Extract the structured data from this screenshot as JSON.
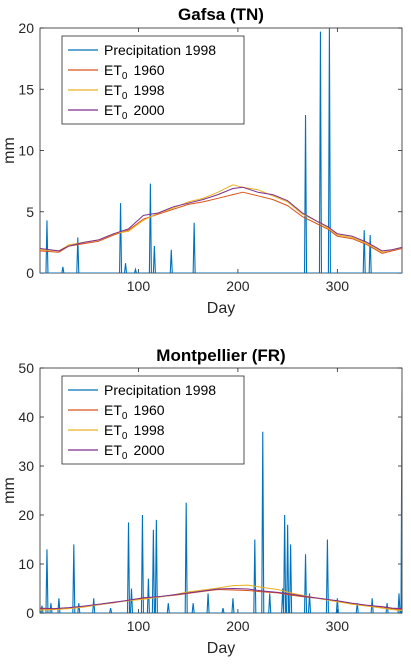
{
  "colors": {
    "precip": "#0072BD",
    "et1960": "#D95319",
    "et1998": "#EDB120",
    "et2000": "#7E2F8E"
  },
  "chart_data": [
    {
      "type": "line",
      "title": "Gafsa (TN)",
      "xlabel": "Day",
      "ylabel": "mm",
      "xlim": [
        1,
        365
      ],
      "ylim": [
        0,
        20
      ],
      "xticks": [
        100,
        200,
        300
      ],
      "yticks": [
        0,
        5,
        10,
        15,
        20
      ],
      "grid": false,
      "legend_position": "top-left",
      "legend": [
        {
          "key": "precip",
          "base": "Precipitation 1998",
          "sub": "",
          "year": ""
        },
        {
          "key": "et1960",
          "base": "ET",
          "sub": "0",
          "year": "1960"
        },
        {
          "key": "et1998",
          "base": "ET",
          "sub": "0",
          "year": "1998"
        },
        {
          "key": "et2000",
          "base": "ET",
          "sub": "0",
          "year": "2000"
        }
      ],
      "precip_events": [
        [
          8,
          4.3
        ],
        [
          24,
          0.5
        ],
        [
          39,
          2.9
        ],
        [
          82,
          5.7
        ],
        [
          87,
          0.8
        ],
        [
          97,
          0.3
        ],
        [
          112,
          7.3
        ],
        [
          116,
          2.2
        ],
        [
          133,
          1.9
        ],
        [
          156,
          4.1
        ],
        [
          268,
          12.9
        ],
        [
          283,
          19.7
        ],
        [
          292,
          20
        ],
        [
          327,
          3.5
        ],
        [
          333,
          3.1
        ]
      ],
      "et_series": [
        {
          "key": "et1960",
          "x": [
            1,
            20,
            30,
            45,
            60,
            75,
            90,
            105,
            120,
            135,
            150,
            165,
            180,
            195,
            205,
            220,
            235,
            250,
            265,
            280,
            290,
            300,
            315,
            330,
            345,
            355,
            365
          ],
          "y": [
            1.8,
            1.7,
            2.2,
            2.4,
            2.6,
            3.1,
            3.5,
            4.4,
            4.8,
            5.2,
            5.6,
            5.8,
            6.1,
            6.4,
            6.6,
            6.3,
            6.0,
            5.5,
            4.6,
            4.0,
            3.6,
            3.0,
            2.8,
            2.3,
            1.6,
            1.8,
            2.0
          ]
        },
        {
          "key": "et1998",
          "x": [
            1,
            20,
            30,
            45,
            60,
            75,
            90,
            105,
            120,
            135,
            150,
            165,
            180,
            195,
            205,
            220,
            235,
            250,
            265,
            280,
            290,
            300,
            315,
            330,
            345,
            355,
            365
          ],
          "y": [
            1.9,
            1.8,
            2.3,
            2.5,
            2.7,
            3.2,
            3.4,
            4.3,
            4.9,
            5.3,
            5.8,
            6.1,
            6.6,
            7.2,
            7.0,
            6.8,
            6.3,
            5.8,
            4.8,
            4.2,
            3.7,
            3.1,
            2.9,
            2.4,
            1.7,
            1.9,
            2.1
          ]
        },
        {
          "key": "et2000",
          "x": [
            1,
            20,
            30,
            45,
            60,
            75,
            90,
            105,
            120,
            135,
            150,
            165,
            180,
            195,
            205,
            220,
            235,
            250,
            265,
            280,
            290,
            300,
            315,
            330,
            345,
            355,
            365
          ],
          "y": [
            2.0,
            1.8,
            2.2,
            2.5,
            2.7,
            3.2,
            3.6,
            4.7,
            4.9,
            5.4,
            5.7,
            6.0,
            6.4,
            6.9,
            7.0,
            6.6,
            6.4,
            5.9,
            4.9,
            4.2,
            3.8,
            3.2,
            3.0,
            2.5,
            1.8,
            1.9,
            2.1
          ]
        }
      ]
    },
    {
      "type": "line",
      "title": "Montpellier (FR)",
      "xlabel": "Day",
      "ylabel": "mm",
      "xlim": [
        1,
        365
      ],
      "ylim": [
        0,
        50
      ],
      "xticks": [
        100,
        200,
        300
      ],
      "yticks": [
        0,
        10,
        20,
        30,
        40,
        50
      ],
      "grid": false,
      "legend_position": "top-left",
      "legend": [
        {
          "key": "precip",
          "base": "Precipitation 1998",
          "sub": "",
          "year": ""
        },
        {
          "key": "et1960",
          "base": "ET",
          "sub": "0",
          "year": "1960"
        },
        {
          "key": "et1998",
          "base": "ET",
          "sub": "0",
          "year": "1998"
        },
        {
          "key": "et2000",
          "base": "ET",
          "sub": "0",
          "year": "2000"
        }
      ],
      "precip_events": [
        [
          3,
          1.5
        ],
        [
          8,
          13
        ],
        [
          12,
          2
        ],
        [
          20,
          3
        ],
        [
          35,
          14
        ],
        [
          40,
          2
        ],
        [
          55,
          3
        ],
        [
          72,
          1
        ],
        [
          90,
          18.5
        ],
        [
          93,
          5
        ],
        [
          104,
          20
        ],
        [
          110,
          7
        ],
        [
          115,
          17
        ],
        [
          118,
          19
        ],
        [
          130,
          2
        ],
        [
          148,
          22.5
        ],
        [
          155,
          2
        ],
        [
          170,
          4
        ],
        [
          185,
          1
        ],
        [
          195,
          3
        ],
        [
          217,
          15
        ],
        [
          225,
          37
        ],
        [
          232,
          4
        ],
        [
          245,
          5
        ],
        [
          247,
          20
        ],
        [
          250,
          18
        ],
        [
          253,
          14
        ],
        [
          268,
          12
        ],
        [
          272,
          4
        ],
        [
          290,
          15
        ],
        [
          300,
          3
        ],
        [
          320,
          2
        ],
        [
          335,
          3
        ],
        [
          350,
          2
        ],
        [
          362,
          4
        ],
        [
          365,
          46
        ]
      ],
      "et_series": [
        {
          "key": "et1960",
          "x": [
            1,
            15,
            30,
            45,
            60,
            75,
            90,
            105,
            120,
            135,
            150,
            165,
            180,
            195,
            210,
            225,
            240,
            255,
            270,
            285,
            300,
            315,
            330,
            345,
            355,
            365
          ],
          "y": [
            0.9,
            0.8,
            1.0,
            1.3,
            1.7,
            2.1,
            2.6,
            3.0,
            3.3,
            3.6,
            4.0,
            4.4,
            4.8,
            4.7,
            4.6,
            4.3,
            4.1,
            3.6,
            3.2,
            2.9,
            2.4,
            1.9,
            1.5,
            1.2,
            0.9,
            0.7
          ]
        },
        {
          "key": "et1998",
          "x": [
            1,
            15,
            30,
            45,
            60,
            75,
            90,
            105,
            120,
            135,
            150,
            165,
            180,
            195,
            210,
            225,
            240,
            255,
            270,
            285,
            300,
            315,
            330,
            345,
            355,
            365
          ],
          "y": [
            0.6,
            0.7,
            0.9,
            1.2,
            1.7,
            2.2,
            2.5,
            2.8,
            3.2,
            3.7,
            4.3,
            4.7,
            5.1,
            5.6,
            5.7,
            5.2,
            4.8,
            4.0,
            3.4,
            2.8,
            2.3,
            1.8,
            1.4,
            1.0,
            0.7,
            0.5
          ]
        },
        {
          "key": "et2000",
          "x": [
            1,
            15,
            30,
            45,
            60,
            75,
            90,
            105,
            120,
            135,
            150,
            165,
            180,
            195,
            210,
            225,
            240,
            255,
            270,
            285,
            300,
            315,
            330,
            345,
            355,
            365
          ],
          "y": [
            1.0,
            0.9,
            1.1,
            1.4,
            1.8,
            2.2,
            2.6,
            3.1,
            3.3,
            3.7,
            4.1,
            4.5,
            4.9,
            5.0,
            4.9,
            4.5,
            4.2,
            3.8,
            3.3,
            2.9,
            2.5,
            2.0,
            1.6,
            1.3,
            1.0,
            0.9
          ]
        }
      ]
    }
  ]
}
